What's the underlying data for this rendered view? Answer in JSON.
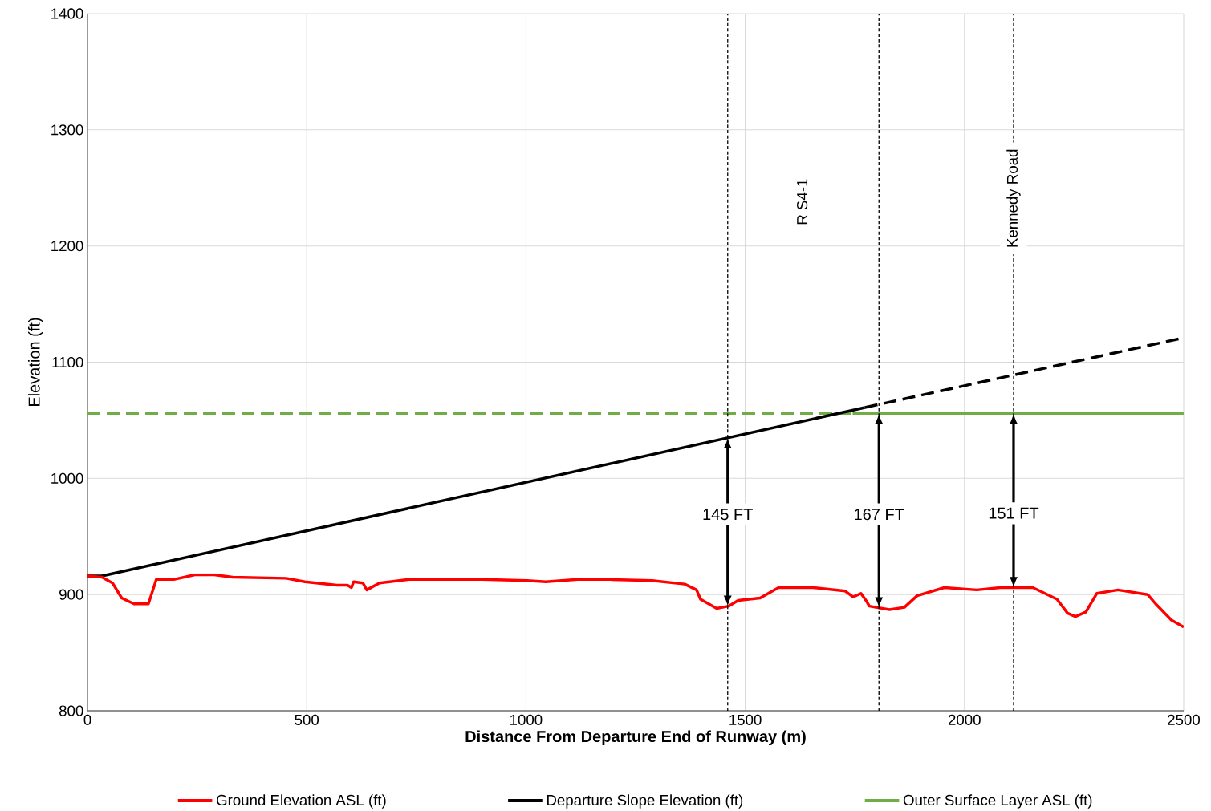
{
  "chart_data": {
    "type": "line",
    "xlabel": "Distance From Departure End of Runway (m)",
    "ylabel": "Elevation (ft)",
    "xlim": [
      0,
      2500
    ],
    "ylim": [
      800,
      1400
    ],
    "xticks": [
      0,
      500,
      1000,
      1500,
      2000,
      2500
    ],
    "yticks": [
      800,
      900,
      1000,
      1100,
      1200,
      1300,
      1400
    ],
    "grid": true,
    "legend": "bottom",
    "marker": "none",
    "series": [
      {
        "name": "Ground Elevation ASL (ft)",
        "color": "#ff0000",
        "line_style": "solid",
        "x": [
          0,
          33,
          57,
          78,
          106,
          139,
          157,
          197,
          245,
          289,
          331,
          453,
          496,
          569,
          593,
          602,
          607,
          628,
          637,
          666,
          734,
          899,
          1003,
          1045,
          1118,
          1191,
          1288,
          1362,
          1389,
          1398,
          1435,
          1462,
          1484,
          1534,
          1576,
          1654,
          1728,
          1746,
          1764,
          1777,
          1783,
          1829,
          1863,
          1892,
          1954,
          2028,
          2082,
          2156,
          2211,
          2235,
          2253,
          2277,
          2302,
          2350,
          2418,
          2436,
          2472,
          2500
        ],
        "values": [
          916,
          915,
          910,
          897,
          892,
          892,
          913,
          913,
          917,
          917,
          915,
          914,
          911,
          908,
          908,
          906,
          911,
          910,
          904,
          910,
          913,
          913,
          912,
          911,
          913,
          913,
          912,
          909,
          904,
          896,
          888,
          890,
          895,
          897,
          906,
          906,
          903,
          898,
          901,
          894,
          890,
          887,
          889,
          899,
          906,
          904,
          906,
          906,
          896,
          884,
          881,
          885,
          901,
          904,
          900,
          892,
          878,
          872
        ]
      },
      {
        "name": "Departure Slope Elevation (ft)",
        "color": "#000000",
        "line_style": "solid",
        "x": [
          0,
          33,
          1773
        ],
        "values": [
          916,
          916,
          1061
        ]
      },
      {
        "color": "#000000",
        "line_style": "dashed",
        "x": [
          1773,
          2500
        ],
        "values": [
          1061,
          1121
        ]
      },
      {
        "name": "Outer Surface Layer ASL (ft)",
        "color": "#70ad47",
        "line_style": "solid",
        "x": [
          1745,
          2500
        ],
        "values": [
          1056,
          1056
        ]
      },
      {
        "color": "#70ad47",
        "line_style": "dashed",
        "x": [
          0,
          1745
        ],
        "values": [
          1056,
          1056
        ]
      }
    ],
    "ref_lines": [
      {
        "axis": "x",
        "value": 1460,
        "color": "#000000",
        "line_style": "dashed"
      },
      {
        "axis": "x",
        "value": 1805,
        "color": "#000000",
        "line_style": "dashed"
      },
      {
        "axis": "x",
        "value": 2112,
        "label": "Kennedy Road",
        "color": "#000000",
        "line_style": "dashed"
      }
    ],
    "annotations": [
      {
        "text": "145 FT",
        "x": 1460,
        "y": 969
      },
      {
        "text": "167 FT",
        "x": 1805,
        "y": 969
      },
      {
        "text": "151 FT",
        "x": 2112,
        "y": 970
      },
      "R S4-1"
    ]
  }
}
